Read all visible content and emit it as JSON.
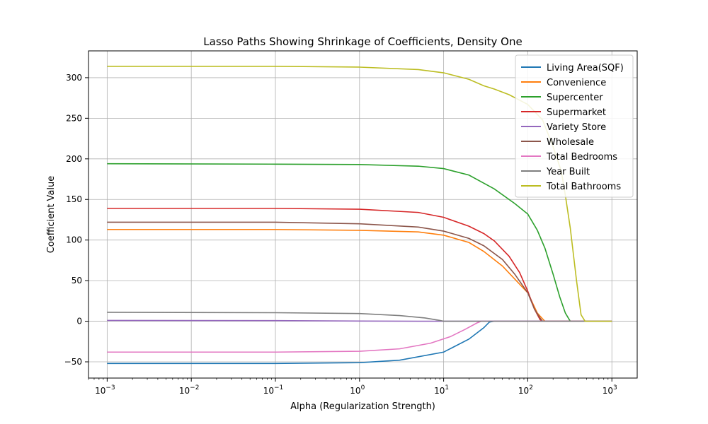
{
  "chart_data": {
    "type": "line",
    "title": "Lasso Paths Showing Shrinkage of Coefficients, Density One",
    "xlabel": "Alpha (Regularization Strength)",
    "ylabel": "Coefficient Value",
    "xscale": "log",
    "xlim": [
      0.0006,
      2000
    ],
    "ylim": [
      -70,
      333
    ],
    "xticks": [
      {
        "value": 0.001,
        "base": "10",
        "exp": "−3"
      },
      {
        "value": 0.01,
        "base": "10",
        "exp": "−2"
      },
      {
        "value": 0.1,
        "base": "10",
        "exp": "−1"
      },
      {
        "value": 1,
        "base": "10",
        "exp": "0"
      },
      {
        "value": 10,
        "base": "10",
        "exp": "1"
      },
      {
        "value": 100,
        "base": "10",
        "exp": "2"
      },
      {
        "value": 1000,
        "base": "10",
        "exp": "3"
      }
    ],
    "yticks": [
      -50,
      0,
      50,
      100,
      150,
      200,
      250,
      300
    ],
    "ytick_labels": [
      "−50",
      "0",
      "50",
      "100",
      "150",
      "200",
      "250",
      "300"
    ],
    "grid": true,
    "legend_position": "top-right",
    "series": [
      {
        "name": "Living Area(SQF)",
        "color": "#1f77b4",
        "points": [
          [
            0.001,
            -52
          ],
          [
            0.1,
            -52
          ],
          [
            1,
            -51
          ],
          [
            3,
            -48
          ],
          [
            10,
            -38
          ],
          [
            20,
            -22
          ],
          [
            30,
            -8
          ],
          [
            35,
            -1
          ],
          [
            40,
            0
          ],
          [
            1000,
            0
          ]
        ]
      },
      {
        "name": "Convenience",
        "color": "#ff7f0e",
        "points": [
          [
            0.001,
            113
          ],
          [
            0.1,
            113
          ],
          [
            1,
            112
          ],
          [
            5,
            110
          ],
          [
            10,
            106
          ],
          [
            20,
            97
          ],
          [
            30,
            86
          ],
          [
            50,
            68
          ],
          [
            100,
            35
          ],
          [
            130,
            10
          ],
          [
            150,
            3
          ],
          [
            160,
            0
          ],
          [
            1000,
            0
          ]
        ]
      },
      {
        "name": "Supercenter",
        "color": "#2ca02c",
        "points": [
          [
            0.001,
            194
          ],
          [
            0.1,
            193.5
          ],
          [
            1,
            193
          ],
          [
            5,
            191
          ],
          [
            10,
            188
          ],
          [
            20,
            180
          ],
          [
            40,
            163
          ],
          [
            70,
            145
          ],
          [
            100,
            132
          ],
          [
            130,
            112
          ],
          [
            160,
            90
          ],
          [
            200,
            58
          ],
          [
            240,
            30
          ],
          [
            280,
            10
          ],
          [
            320,
            0
          ],
          [
            1000,
            0
          ]
        ]
      },
      {
        "name": "Supermarket",
        "color": "#d62728",
        "points": [
          [
            0.001,
            139
          ],
          [
            0.1,
            139
          ],
          [
            1,
            138
          ],
          [
            5,
            134
          ],
          [
            10,
            128
          ],
          [
            20,
            117
          ],
          [
            30,
            108
          ],
          [
            40,
            99
          ],
          [
            60,
            80
          ],
          [
            80,
            60
          ],
          [
            100,
            37
          ],
          [
            120,
            15
          ],
          [
            140,
            2
          ],
          [
            150,
            0
          ],
          [
            1000,
            0
          ]
        ]
      },
      {
        "name": "Variety Store",
        "color": "#9467bd",
        "points": [
          [
            0.001,
            1
          ],
          [
            0.1,
            0.8
          ],
          [
            1,
            0.2
          ],
          [
            5,
            0
          ],
          [
            1000,
            0
          ]
        ]
      },
      {
        "name": "Wholesale",
        "color": "#8c564b",
        "points": [
          [
            0.001,
            122
          ],
          [
            0.1,
            122
          ],
          [
            1,
            120
          ],
          [
            5,
            116
          ],
          [
            10,
            111
          ],
          [
            20,
            102
          ],
          [
            30,
            93
          ],
          [
            50,
            76
          ],
          [
            70,
            58
          ],
          [
            100,
            35
          ],
          [
            120,
            15
          ],
          [
            140,
            4
          ],
          [
            150,
            0
          ],
          [
            1000,
            0
          ]
        ]
      },
      {
        "name": "Total Bedrooms",
        "color": "#e377c2",
        "points": [
          [
            0.001,
            -38
          ],
          [
            0.1,
            -38
          ],
          [
            1,
            -37
          ],
          [
            3,
            -34
          ],
          [
            7,
            -27
          ],
          [
            12,
            -19
          ],
          [
            18,
            -10
          ],
          [
            25,
            -2
          ],
          [
            28,
            0
          ],
          [
            1000,
            0
          ]
        ]
      },
      {
        "name": "Year Built",
        "color": "#7f7f7f",
        "points": [
          [
            0.001,
            11
          ],
          [
            0.1,
            10.5
          ],
          [
            1,
            9.5
          ],
          [
            3,
            7
          ],
          [
            6,
            4
          ],
          [
            9,
            1
          ],
          [
            10,
            0
          ],
          [
            1000,
            0
          ]
        ]
      },
      {
        "name": "Total Bathrooms",
        "color": "#bcbd22",
        "points": [
          [
            0.001,
            314
          ],
          [
            0.1,
            314
          ],
          [
            1,
            313
          ],
          [
            5,
            310
          ],
          [
            10,
            306
          ],
          [
            20,
            298
          ],
          [
            30,
            290
          ],
          [
            40,
            286
          ],
          [
            60,
            279
          ],
          [
            100,
            267
          ],
          [
            150,
            248
          ],
          [
            200,
            215
          ],
          [
            250,
            185
          ],
          [
            280,
            155
          ],
          [
            320,
            115
          ],
          [
            380,
            50
          ],
          [
            430,
            8
          ],
          [
            480,
            0
          ],
          [
            1000,
            0
          ]
        ]
      }
    ]
  }
}
